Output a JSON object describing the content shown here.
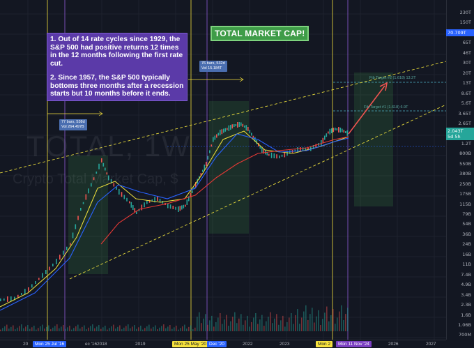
{
  "watermark": {
    "symbol": "TOTAL, 1W",
    "name": "Crypto Total Market Cap, $"
  },
  "title_badge": "TOTAL MARKET CAP!",
  "notes": [
    "1. Out of 14 rate cycles since 1929, the S&P 500 had positive returns 12 times in the 12 months following the first rate cut.",
    "2. Since 1957, the S&P 500 typically bottoms three months after a recession starts but 10 months before it ends."
  ],
  "range_labels": [
    {
      "line1": "77 bars, 538d",
      "line2": "Vol 264.497B"
    },
    {
      "line1": "76 bars, 532d",
      "line2": "Vol 15.184T"
    }
  ],
  "fib_labels": [
    "Fib Target #2 (1.618) 13.2T",
    "Fib Target #1 (1.618) 6.9T"
  ],
  "price_axis": {
    "ticks": [
      "230T",
      "150T",
      "100T",
      "65T",
      "46T",
      "30T",
      "20T",
      "13T",
      "8.6T",
      "5.6T",
      "3.65T",
      "2.65T",
      "1.7T",
      "1.2T",
      "800B",
      "550B",
      "380B",
      "250B",
      "175B",
      "115B",
      "79B",
      "54B",
      "36B",
      "24B",
      "16B",
      "11B",
      "7.4B",
      "4.9B",
      "3.4B",
      "2.3B",
      "1.6B",
      "1.06B",
      "700M"
    ],
    "last_price": "2.043T",
    "last_countdown": "5d 5h",
    "marker_tag": "70.709T",
    "last_color": "#26a69a",
    "marker_color": "#2962ff"
  },
  "time_axis": {
    "ticks": [
      "2017",
      "2018",
      "2019",
      "2021",
      "2022",
      "2023",
      "2025",
      "2026",
      "2027"
    ],
    "badges": [
      {
        "label": "Mon 25 Jul '16",
        "color": "#2962ff",
        "text_color": "#ffffff"
      },
      {
        "label": "Mon 25 May '20",
        "color": "#f7e23c",
        "text_color": "#131722"
      },
      {
        "label": "Dec '20",
        "color": "#2962ff",
        "text_color": "#ffffff"
      },
      {
        "label": "Mon 2",
        "color": "#f7e23c",
        "text_color": "#131722"
      },
      {
        "label": "Mon 11 Nov '24",
        "color": "#7b3fc2",
        "text_color": "#ffffff"
      }
    ],
    "partial_labels": [
      "20",
      "ec '16"
    ]
  },
  "colors": {
    "background": "#131722",
    "candle_up": "#26a69a",
    "candle_down": "#ef5350",
    "ma_blue": "#2962ff",
    "ma_yellow": "#e6d93b",
    "ma_red": "#e53935",
    "trend_lines": "#e6d93b",
    "projection_arrow": "#ef5350",
    "vertical_yellow": "#f7e23c",
    "vertical_purple": "#8e5bd6"
  }
}
